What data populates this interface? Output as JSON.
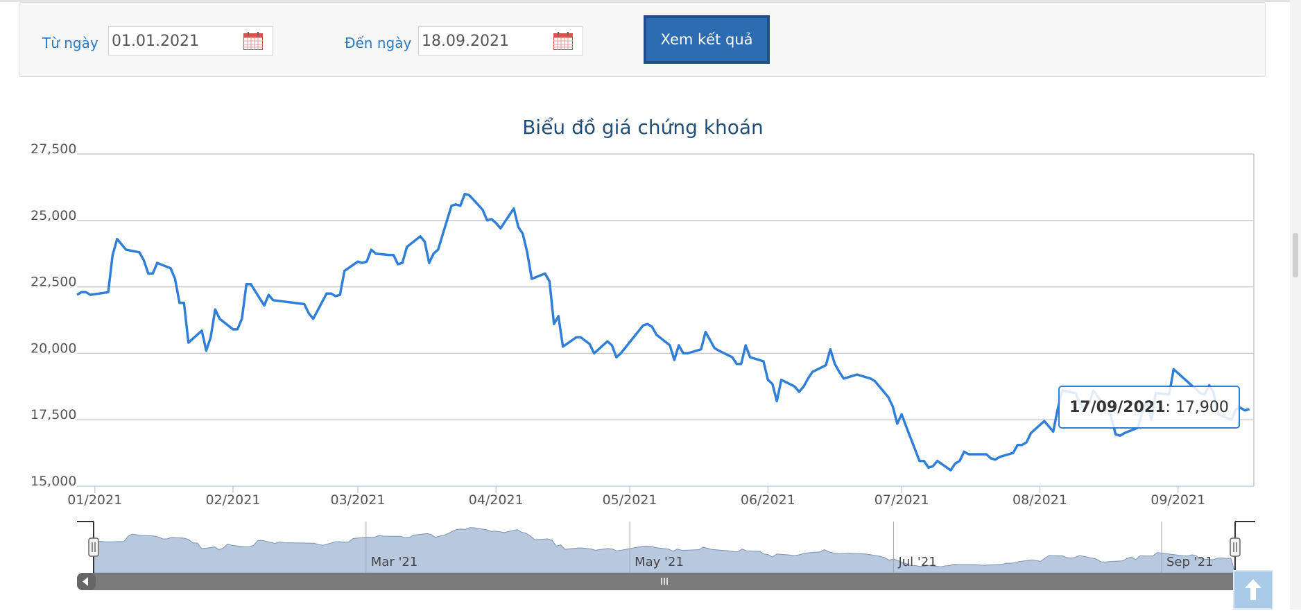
{
  "filter": {
    "from_label": "Từ ngày",
    "from_value": "01.01.2021",
    "to_label": "Đến ngày",
    "to_value": "18.09.2021",
    "submit_label": "Xem kết quả"
  },
  "colors": {
    "line": "#2f7ed8",
    "navigator_fill": "#b8c8de",
    "button": "#2e6cb2"
  },
  "chart_data": {
    "type": "line",
    "title": "Biểu đồ giá chứng khoán",
    "xlabel": "",
    "ylabel": "",
    "ylim": [
      15000,
      27500
    ],
    "y_ticks": [
      {
        "value": 15000,
        "label": "15,000"
      },
      {
        "value": 17500,
        "label": "17,500"
      },
      {
        "value": 20000,
        "label": "20,000"
      },
      {
        "value": 22500,
        "label": "22,500"
      },
      {
        "value": 25000,
        "label": "25,000"
      },
      {
        "value": 27500,
        "label": "27,500"
      }
    ],
    "x_range": [
      "2020-12-28",
      "2021-09-18"
    ],
    "x_ticks": [
      {
        "date": "2021-01-01",
        "label": "01/2021"
      },
      {
        "date": "2021-02-01",
        "label": "02/2021"
      },
      {
        "date": "2021-03-01",
        "label": "03/2021"
      },
      {
        "date": "2021-04-01",
        "label": "04/2021"
      },
      {
        "date": "2021-05-01",
        "label": "05/2021"
      },
      {
        "date": "2021-06-01",
        "label": "06/2021"
      },
      {
        "date": "2021-07-01",
        "label": "07/2021"
      },
      {
        "date": "2021-08-01",
        "label": "08/2021"
      },
      {
        "date": "2021-09-01",
        "label": "09/2021"
      }
    ],
    "grid": true,
    "series": [
      {
        "points": [
          [
            "2020-12-28",
            22200
          ],
          [
            "2020-12-29",
            22300
          ],
          [
            "2020-12-30",
            22300
          ],
          [
            "2020-12-31",
            22200
          ],
          [
            "2021-01-04",
            22300
          ],
          [
            "2021-01-05",
            23700
          ],
          [
            "2021-01-06",
            24300
          ],
          [
            "2021-01-07",
            24100
          ],
          [
            "2021-01-08",
            23900
          ],
          [
            "2021-01-11",
            23800
          ],
          [
            "2021-01-12",
            23500
          ],
          [
            "2021-01-13",
            23000
          ],
          [
            "2021-01-14",
            23000
          ],
          [
            "2021-01-15",
            23400
          ],
          [
            "2021-01-18",
            23200
          ],
          [
            "2021-01-19",
            22800
          ],
          [
            "2021-01-20",
            21900
          ],
          [
            "2021-01-21",
            21900
          ],
          [
            "2021-01-22",
            20400
          ],
          [
            "2021-01-25",
            20850
          ],
          [
            "2021-01-26",
            20100
          ],
          [
            "2021-01-27",
            20600
          ],
          [
            "2021-01-28",
            21650
          ],
          [
            "2021-01-29",
            21300
          ],
          [
            "2021-02-01",
            20900
          ],
          [
            "2021-02-02",
            20900
          ],
          [
            "2021-02-03",
            21300
          ],
          [
            "2021-02-04",
            22600
          ],
          [
            "2021-02-05",
            22600
          ],
          [
            "2021-02-08",
            21800
          ],
          [
            "2021-02-09",
            22200
          ],
          [
            "2021-02-10",
            22000
          ],
          [
            "2021-02-17",
            21850
          ],
          [
            "2021-02-18",
            21500
          ],
          [
            "2021-02-19",
            21300
          ],
          [
            "2021-02-22",
            22250
          ],
          [
            "2021-02-23",
            22250
          ],
          [
            "2021-02-24",
            22150
          ],
          [
            "2021-02-25",
            22200
          ],
          [
            "2021-02-26",
            23100
          ],
          [
            "2021-03-01",
            23450
          ],
          [
            "2021-03-02",
            23400
          ],
          [
            "2021-03-03",
            23450
          ],
          [
            "2021-03-04",
            23900
          ],
          [
            "2021-03-05",
            23750
          ],
          [
            "2021-03-08",
            23700
          ],
          [
            "2021-03-09",
            23700
          ],
          [
            "2021-03-10",
            23350
          ],
          [
            "2021-03-11",
            23400
          ],
          [
            "2021-03-12",
            24000
          ],
          [
            "2021-03-15",
            24400
          ],
          [
            "2021-03-16",
            24200
          ],
          [
            "2021-03-17",
            23400
          ],
          [
            "2021-03-18",
            23750
          ],
          [
            "2021-03-19",
            23900
          ],
          [
            "2021-03-22",
            25550
          ],
          [
            "2021-03-23",
            25600
          ],
          [
            "2021-03-24",
            25550
          ],
          [
            "2021-03-25",
            26000
          ],
          [
            "2021-03-26",
            25950
          ],
          [
            "2021-03-29",
            25400
          ],
          [
            "2021-03-30",
            25000
          ],
          [
            "2021-03-31",
            25050
          ],
          [
            "2021-04-01",
            24900
          ],
          [
            "2021-04-02",
            24700
          ],
          [
            "2021-04-05",
            25450
          ],
          [
            "2021-04-06",
            24750
          ],
          [
            "2021-04-07",
            24500
          ],
          [
            "2021-04-08",
            23800
          ],
          [
            "2021-04-09",
            22800
          ],
          [
            "2021-04-12",
            23000
          ],
          [
            "2021-04-13",
            22700
          ],
          [
            "2021-04-14",
            21100
          ],
          [
            "2021-04-15",
            21400
          ],
          [
            "2021-04-16",
            20250
          ],
          [
            "2021-04-19",
            20600
          ],
          [
            "2021-04-20",
            20600
          ],
          [
            "2021-04-22",
            20350
          ],
          [
            "2021-04-23",
            20000
          ],
          [
            "2021-04-26",
            20450
          ],
          [
            "2021-04-27",
            20300
          ],
          [
            "2021-04-28",
            19850
          ],
          [
            "2021-04-29",
            20000
          ],
          [
            "2021-05-04",
            21050
          ],
          [
            "2021-05-05",
            21100
          ],
          [
            "2021-05-06",
            21000
          ],
          [
            "2021-05-07",
            20700
          ],
          [
            "2021-05-10",
            20300
          ],
          [
            "2021-05-11",
            19750
          ],
          [
            "2021-05-12",
            20300
          ],
          [
            "2021-05-13",
            20000
          ],
          [
            "2021-05-14",
            20000
          ],
          [
            "2021-05-17",
            20150
          ],
          [
            "2021-05-18",
            20800
          ],
          [
            "2021-05-19",
            20500
          ],
          [
            "2021-05-20",
            20200
          ],
          [
            "2021-05-21",
            20100
          ],
          [
            "2021-05-24",
            19850
          ],
          [
            "2021-05-25",
            19600
          ],
          [
            "2021-05-26",
            19600
          ],
          [
            "2021-05-27",
            20300
          ],
          [
            "2021-05-28",
            19850
          ],
          [
            "2021-05-31",
            19700
          ],
          [
            "2021-06-01",
            19000
          ],
          [
            "2021-06-02",
            18850
          ],
          [
            "2021-06-03",
            18200
          ],
          [
            "2021-06-04",
            19000
          ],
          [
            "2021-06-07",
            18750
          ],
          [
            "2021-06-08",
            18550
          ],
          [
            "2021-06-09",
            18750
          ],
          [
            "2021-06-10",
            19050
          ],
          [
            "2021-06-11",
            19300
          ],
          [
            "2021-06-14",
            19550
          ],
          [
            "2021-06-15",
            20150
          ],
          [
            "2021-06-16",
            19600
          ],
          [
            "2021-06-17",
            19300
          ],
          [
            "2021-06-18",
            19050
          ],
          [
            "2021-06-21",
            19200
          ],
          [
            "2021-06-22",
            19150
          ],
          [
            "2021-06-23",
            19100
          ],
          [
            "2021-06-24",
            19050
          ],
          [
            "2021-06-25",
            18950
          ],
          [
            "2021-06-28",
            18350
          ],
          [
            "2021-06-29",
            18000
          ],
          [
            "2021-06-30",
            17350
          ],
          [
            "2021-07-01",
            17700
          ],
          [
            "2021-07-02",
            17250
          ],
          [
            "2021-07-05",
            15950
          ],
          [
            "2021-07-06",
            15950
          ],
          [
            "2021-07-07",
            15700
          ],
          [
            "2021-07-08",
            15750
          ],
          [
            "2021-07-09",
            15950
          ],
          [
            "2021-07-12",
            15600
          ],
          [
            "2021-07-13",
            15850
          ],
          [
            "2021-07-14",
            15950
          ],
          [
            "2021-07-15",
            16300
          ],
          [
            "2021-07-16",
            16200
          ],
          [
            "2021-07-19",
            16200
          ],
          [
            "2021-07-20",
            16200
          ],
          [
            "2021-07-21",
            16050
          ],
          [
            "2021-07-22",
            16000
          ],
          [
            "2021-07-23",
            16100
          ],
          [
            "2021-07-26",
            16250
          ],
          [
            "2021-07-27",
            16550
          ],
          [
            "2021-07-28",
            16550
          ],
          [
            "2021-07-29",
            16650
          ],
          [
            "2021-07-30",
            17000
          ],
          [
            "2021-08-02",
            17450
          ],
          [
            "2021-08-03",
            17250
          ],
          [
            "2021-08-04",
            17050
          ],
          [
            "2021-08-05",
            17900
          ],
          [
            "2021-08-06",
            18600
          ],
          [
            "2021-08-09",
            18500
          ],
          [
            "2021-08-10",
            18100
          ],
          [
            "2021-08-11",
            17900
          ],
          [
            "2021-08-12",
            18100
          ],
          [
            "2021-08-13",
            18600
          ],
          [
            "2021-08-16",
            17900
          ],
          [
            "2021-08-17",
            17600
          ],
          [
            "2021-08-18",
            16950
          ],
          [
            "2021-08-19",
            16900
          ],
          [
            "2021-08-20",
            17000
          ],
          [
            "2021-08-23",
            17200
          ],
          [
            "2021-08-24",
            17800
          ],
          [
            "2021-08-25",
            18200
          ],
          [
            "2021-08-26",
            17500
          ],
          [
            "2021-08-27",
            18500
          ],
          [
            "2021-08-30",
            18450
          ],
          [
            "2021-08-31",
            19400
          ],
          [
            "2021-09-06",
            18500
          ],
          [
            "2021-09-07",
            18450
          ],
          [
            "2021-09-08",
            18800
          ],
          [
            "2021-09-09",
            18500
          ],
          [
            "2021-09-10",
            17700
          ],
          [
            "2021-09-13",
            17500
          ],
          [
            "2021-09-14",
            17900
          ],
          [
            "2021-09-15",
            17950
          ],
          [
            "2021-09-16",
            17850
          ],
          [
            "2021-09-17",
            17900
          ]
        ]
      }
    ],
    "tooltip": {
      "date": "17/09/2021",
      "value": "17,900"
    },
    "navigator": {
      "labels": [
        {
          "date": "2021-03-01",
          "label": "Mar '21"
        },
        {
          "date": "2021-05-01",
          "label": "May '21"
        },
        {
          "date": "2021-07-01",
          "label": "Jul '21"
        },
        {
          "date": "2021-09-01",
          "label": "Sep '21"
        }
      ]
    }
  }
}
